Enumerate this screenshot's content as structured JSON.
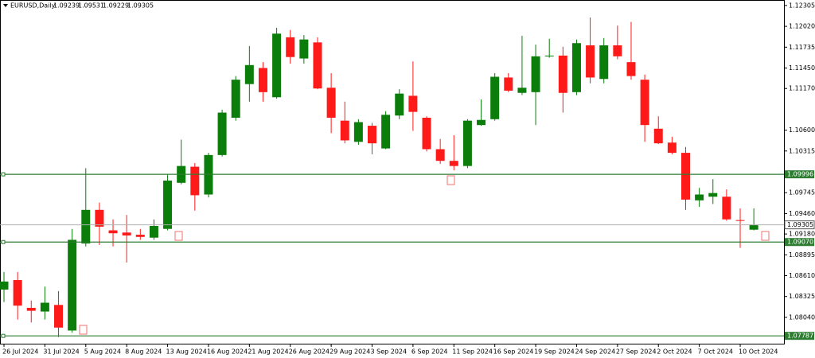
{
  "chart_data": {
    "type": "candlestick",
    "header": {
      "symbol": "EURUSD,Daily",
      "ohlc": [
        1.09239,
        1.09531,
        1.09229,
        1.09305
      ]
    },
    "categories": [
      "26 Jul 2024",
      null,
      null,
      "31 Jul 2024",
      null,
      null,
      "5 Aug 2024",
      null,
      null,
      "8 Aug 2024",
      null,
      null,
      "13 Aug 2024",
      null,
      null,
      "16 Aug 2024",
      null,
      null,
      "21 Aug 2024",
      null,
      null,
      "26 Aug 2024",
      null,
      null,
      "29 Aug 2024",
      null,
      null,
      "3 Sep 2024",
      null,
      null,
      "6 Sep 2024",
      null,
      null,
      "11 Sep 2024",
      null,
      null,
      "16 Sep 2024",
      null,
      null,
      "19 Sep 2024",
      null,
      null,
      "24 Sep 2024",
      null,
      null,
      "27 Sep 2024",
      null,
      null,
      "2 Oct 2024",
      null,
      null,
      "7 Oct 2024",
      null,
      null,
      "10 Oct 2024",
      null
    ],
    "open": [
      1.0842,
      1.0855,
      1.0817,
      1.0812,
      1.0821,
      1.0786,
      1.0905,
      1.0951,
      1.0923,
      1.092,
      1.0917,
      1.0913,
      1.0925,
      1.0988,
      1.101,
      1.0972,
      1.1026,
      1.1077,
      1.1123,
      1.1145,
      1.1105,
      1.1187,
      1.1158,
      1.118,
      1.1118,
      1.1073,
      1.1044,
      1.1066,
      1.1035,
      1.108,
      1.1107,
      1.1077,
      1.1034,
      1.1018,
      1.1011,
      1.1067,
      1.1075,
      1.1132,
      1.1111,
      1.1112,
      1.1161,
      1.1162,
      1.1112,
      1.1176,
      1.113,
      1.1176,
      1.1153,
      1.1129,
      1.1062,
      1.1043,
      1.1029,
      1.0964,
      1.0969,
      1.0969,
      1.0937,
      1.09239
    ],
    "high": [
      1.0866,
      1.0866,
      1.0827,
      1.0846,
      1.084,
      1.0925,
      1.1008,
      1.0961,
      1.0938,
      1.0944,
      1.0925,
      1.0938,
      1.0999,
      1.1047,
      1.1015,
      1.1029,
      1.1088,
      1.1134,
      1.1175,
      1.1153,
      1.12,
      1.1197,
      1.119,
      1.1187,
      1.1138,
      1.1099,
      1.1075,
      1.107,
      1.1086,
      1.1116,
      1.1154,
      1.1079,
      1.1048,
      1.1053,
      1.1075,
      1.1102,
      1.1138,
      1.1138,
      1.1189,
      1.1177,
      1.1185,
      1.1174,
      1.1184,
      1.1214,
      1.1186,
      1.1203,
      1.1208,
      1.1136,
      1.1079,
      1.1051,
      1.1037,
      1.0981,
      1.0993,
      1.0979,
      1.0953,
      1.09531
    ],
    "low": [
      1.0825,
      1.0801,
      1.0797,
      1.0801,
      1.0777,
      1.0783,
      1.0901,
      1.0903,
      1.0901,
      1.0879,
      1.091,
      1.091,
      1.0923,
      1.0986,
      1.095,
      1.0968,
      1.1024,
      1.1073,
      1.1099,
      1.1099,
      1.1103,
      1.1151,
      1.1151,
      1.1116,
      1.1056,
      1.1042,
      1.104,
      1.1027,
      1.1034,
      1.1075,
      1.1059,
      1.1031,
      1.1014,
      1.1005,
      1.1008,
      1.1066,
      1.1073,
      1.1112,
      1.1108,
      1.1067,
      1.1159,
      1.1084,
      1.1108,
      1.1124,
      1.1124,
      1.1157,
      1.1129,
      1.1044,
      1.1041,
      1.1027,
      1.0951,
      1.0955,
      1.0959,
      1.0936,
      1.0899,
      1.09229
    ],
    "close": [
      1.0853,
      1.082,
      1.0813,
      1.0824,
      1.079,
      1.091,
      1.0951,
      1.0928,
      1.0919,
      1.0916,
      1.0914,
      1.0929,
      1.0991,
      1.1011,
      1.0971,
      1.1026,
      1.1084,
      1.1129,
      1.1149,
      1.1112,
      1.1192,
      1.116,
      1.1184,
      1.1117,
      1.1077,
      1.1046,
      1.1071,
      1.1042,
      1.1081,
      1.111,
      1.1085,
      1.1034,
      1.1018,
      1.1011,
      1.1073,
      1.1074,
      1.1133,
      1.1114,
      1.1118,
      1.1161,
      1.1162,
      1.1111,
      1.1179,
      1.1132,
      1.1176,
      1.1161,
      1.1134,
      1.1067,
      1.1042,
      1.1029,
      1.0965,
      1.0972,
      1.0974,
      1.0938,
      1.0936,
      1.09305
    ],
    "up_color": "#0a7d0a",
    "down_color": "#ff1a1a",
    "ylim": [
      1.0768,
      1.1238
    ],
    "yticks": [
      1.12305,
      {
        "value": 1.1202,
        "label": "1.12020"
      },
      1.11735,
      {
        "value": 1.1145,
        "label": "1.11450"
      },
      {
        "value": 1.1117,
        "label": "1.11170"
      },
      {
        "value": 1.106,
        "label": "1.10600"
      },
      1.10315,
      1.09745,
      {
        "value": 1.0946,
        "label": "1.09460"
      },
      {
        "value": 1.0918,
        "label": "1.09180"
      },
      1.08895,
      {
        "value": 1.0861,
        "label": "1.08610"
      },
      1.08325,
      {
        "value": 1.0804,
        "label": "1.08040"
      }
    ],
    "levels": [
      {
        "value": 1.09996,
        "color": "#2e7d32"
      },
      {
        "value": 1.0907,
        "label": "1.09070",
        "color": "#2e7d32"
      },
      {
        "value": 1.07787,
        "color": "#2e7d32"
      }
    ],
    "price_line_color": "#b0b0b0"
  }
}
